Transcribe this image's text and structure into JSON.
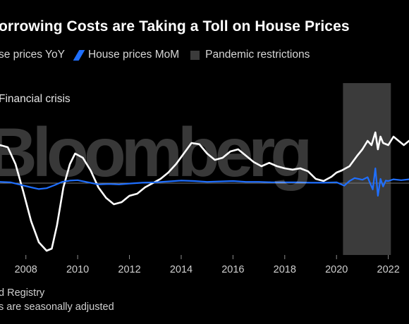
{
  "header": {
    "title": "orrowing Costs are Taking a Toll on House Prices"
  },
  "legend": {
    "items": [
      {
        "label": "se prices YoY",
        "color": "#ffffff",
        "kind": "line"
      },
      {
        "label": "House prices MoM",
        "color": "#1f6fff",
        "kind": "line"
      },
      {
        "label": "Pandemic restrictions",
        "color": "#3b3b3b",
        "kind": "box"
      }
    ]
  },
  "annotation": "Financial crisis",
  "watermark": "Bloomberg",
  "footer": {
    "source": "d Registry",
    "note": "s are seasonally adjusted"
  },
  "chart_data": {
    "type": "line",
    "x_ticks": [
      "2008",
      "2010",
      "2012",
      "2014",
      "2016",
      "2018",
      "2020",
      "2022"
    ],
    "xlim": [
      2007.0,
      2022.8
    ],
    "ylim": [
      -17,
      15
    ],
    "shaded_regions": [
      {
        "label": "Pandemic restrictions",
        "x": [
          2020.25,
          2022.1
        ]
      }
    ],
    "series": [
      {
        "name": "House prices YoY",
        "color": "#ffffff",
        "x": [
          2007.0,
          2007.3,
          2007.6,
          2007.9,
          2008.2,
          2008.5,
          2008.8,
          2009.0,
          2009.2,
          2009.45,
          2009.7,
          2009.9,
          2010.2,
          2010.5,
          2010.8,
          2011.1,
          2011.4,
          2011.7,
          2012.0,
          2012.3,
          2012.6,
          2012.9,
          2013.2,
          2013.5,
          2013.8,
          2014.1,
          2014.4,
          2014.7,
          2015.0,
          2015.3,
          2015.6,
          2015.9,
          2016.2,
          2016.5,
          2016.8,
          2017.1,
          2017.4,
          2017.7,
          2018.0,
          2018.3,
          2018.6,
          2018.9,
          2019.2,
          2019.5,
          2019.8,
          2020.0,
          2020.2,
          2020.5,
          2020.8,
          2021.0,
          2021.2,
          2021.35,
          2021.5,
          2021.6,
          2021.7,
          2021.8,
          2022.0,
          2022.2,
          2022.4,
          2022.6,
          2022.8
        ],
        "y": [
          9,
          8.5,
          4.5,
          -2,
          -9,
          -14,
          -16,
          -15.5,
          -10,
          -1,
          4.5,
          7,
          6,
          3,
          -1,
          -3.5,
          -5,
          -4.5,
          -3,
          -2.5,
          -1,
          0,
          1,
          2.5,
          4.5,
          7,
          9.5,
          9.2,
          7,
          5.5,
          6,
          7.5,
          8,
          6.5,
          5,
          4,
          4.8,
          4,
          3.5,
          3.2,
          3.5,
          2.8,
          1,
          0.5,
          1.5,
          2.5,
          3,
          4,
          6.5,
          8,
          10,
          9,
          12,
          8,
          11,
          9.5,
          9,
          11,
          10,
          9,
          10
        ]
      },
      {
        "name": "House prices MoM",
        "color": "#1f6fff",
        "x": [
          2007.0,
          2007.4,
          2007.8,
          2008.2,
          2008.5,
          2008.8,
          2009.1,
          2009.4,
          2009.7,
          2010.0,
          2010.4,
          2010.8,
          2011.2,
          2011.6,
          2012.0,
          2012.5,
          2013.0,
          2013.5,
          2014.0,
          2014.5,
          2015.0,
          2015.5,
          2016.0,
          2016.5,
          2017.0,
          2017.5,
          2018.0,
          2018.5,
          2019.0,
          2019.5,
          2020.0,
          2020.3,
          2020.5,
          2020.7,
          2021.0,
          2021.2,
          2021.4,
          2021.5,
          2021.6,
          2021.7,
          2021.8,
          2021.9,
          2022.0,
          2022.2,
          2022.5,
          2022.8
        ],
        "y": [
          0.3,
          0.2,
          -0.4,
          -1,
          -1.4,
          -1.2,
          -0.5,
          0.3,
          0.6,
          0.7,
          0.2,
          -0.3,
          -0.2,
          -0.3,
          -0.1,
          0.1,
          0.2,
          0.4,
          0.6,
          0.5,
          0.3,
          0.4,
          0.5,
          0.3,
          0.3,
          0.2,
          0.2,
          0.2,
          0.1,
          0.1,
          0.2,
          -0.6,
          0.5,
          1.2,
          0.8,
          1.4,
          -1.5,
          3.5,
          -3,
          1,
          -0.8,
          0.6,
          0.5,
          0.9,
          0.7,
          0.9
        ]
      }
    ]
  }
}
